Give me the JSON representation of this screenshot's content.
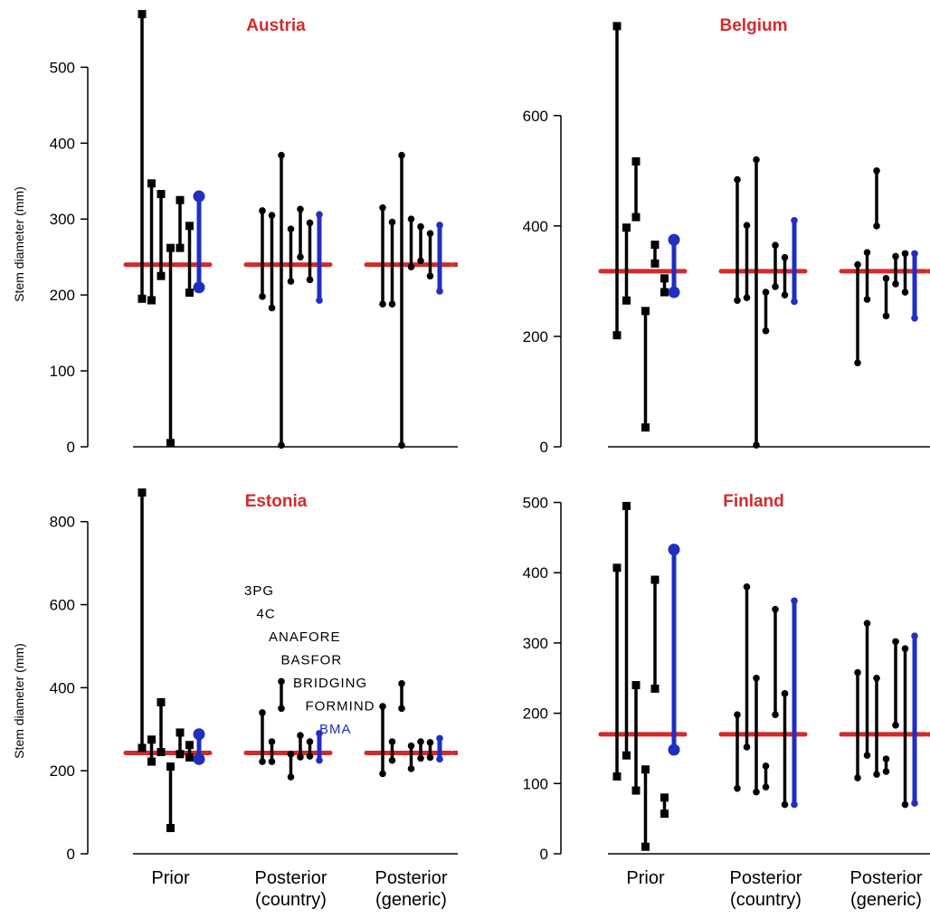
{
  "chart_data": [
    {
      "type": "scatter",
      "title": "Austria",
      "ylabel": "Stem diameter (mm)",
      "ylim": [
        0,
        560
      ],
      "yticks": [
        0,
        100,
        200,
        300,
        400,
        500
      ],
      "categories": [],
      "observed": 240,
      "groups": [
        {
          "name": "Prior",
          "intervals": [
            {
              "low": 195,
              "high": 570,
              "color": "black",
              "marker": "square"
            },
            {
              "low": 193,
              "high": 347,
              "color": "black",
              "marker": "square"
            },
            {
              "low": 225,
              "high": 333,
              "color": "black",
              "marker": "square"
            },
            {
              "low": 5,
              "high": 262,
              "color": "black",
              "marker": "square"
            },
            {
              "low": 262,
              "high": 325,
              "color": "black",
              "marker": "square"
            },
            {
              "low": 203,
              "high": 291,
              "color": "black",
              "marker": "square"
            },
            {
              "low": 210,
              "high": 330,
              "color": "blue",
              "marker": "big"
            }
          ]
        },
        {
          "name": "Posterior (country)",
          "intervals": [
            {
              "low": 198,
              "high": 311,
              "color": "black",
              "marker": "dot"
            },
            {
              "low": 183,
              "high": 305,
              "color": "black",
              "marker": "dot"
            },
            {
              "low": 2,
              "high": 384,
              "color": "black",
              "marker": "dot"
            },
            {
              "low": 218,
              "high": 287,
              "color": "black",
              "marker": "dot"
            },
            {
              "low": 250,
              "high": 313,
              "color": "black",
              "marker": "dot"
            },
            {
              "low": 220,
              "high": 295,
              "color": "black",
              "marker": "dot"
            },
            {
              "low": 193,
              "high": 306,
              "color": "blue",
              "marker": "dot"
            }
          ]
        },
        {
          "name": "Posterior (generic)",
          "intervals": [
            {
              "low": 188,
              "high": 315,
              "color": "black",
              "marker": "dot"
            },
            {
              "low": 188,
              "high": 296,
              "color": "black",
              "marker": "dot"
            },
            {
              "low": 2,
              "high": 384,
              "color": "black",
              "marker": "dot"
            },
            {
              "low": 237,
              "high": 300,
              "color": "black",
              "marker": "dot"
            },
            {
              "low": 245,
              "high": 290,
              "color": "black",
              "marker": "dot"
            },
            {
              "low": 225,
              "high": 281,
              "color": "black",
              "marker": "dot"
            },
            {
              "low": 205,
              "high": 292,
              "color": "blue",
              "marker": "dot"
            }
          ]
        }
      ]
    },
    {
      "type": "scatter",
      "title": "Belgium",
      "ylabel": "",
      "ylim": [
        0,
        770
      ],
      "yticks": [
        0,
        200,
        400,
        600
      ],
      "categories": [],
      "observed": 318,
      "groups": [
        {
          "name": "Prior",
          "intervals": [
            {
              "low": 202,
              "high": 762,
              "color": "black",
              "marker": "square"
            },
            {
              "low": 265,
              "high": 397,
              "color": "black",
              "marker": "square"
            },
            {
              "low": 416,
              "high": 517,
              "color": "black",
              "marker": "square"
            },
            {
              "low": 35,
              "high": 246,
              "color": "black",
              "marker": "square"
            },
            {
              "low": 332,
              "high": 366,
              "color": "black",
              "marker": "square"
            },
            {
              "low": 280,
              "high": 305,
              "color": "black",
              "marker": "square"
            },
            {
              "low": 280,
              "high": 375,
              "color": "blue",
              "marker": "big"
            }
          ]
        },
        {
          "name": "Posterior (country)",
          "intervals": [
            {
              "low": 265,
              "high": 484,
              "color": "black",
              "marker": "dot"
            },
            {
              "low": 270,
              "high": 401,
              "color": "black",
              "marker": "dot"
            },
            {
              "low": 3,
              "high": 520,
              "color": "black",
              "marker": "dot"
            },
            {
              "low": 210,
              "high": 280,
              "color": "black",
              "marker": "dot"
            },
            {
              "low": 290,
              "high": 365,
              "color": "black",
              "marker": "dot"
            },
            {
              "low": 275,
              "high": 343,
              "color": "black",
              "marker": "dot"
            },
            {
              "low": 263,
              "high": 410,
              "color": "blue",
              "marker": "dot"
            }
          ]
        },
        {
          "name": "Posterior (generic)",
          "intervals": [
            {
              "low": 152,
              "high": 330,
              "color": "black",
              "marker": "dot"
            },
            {
              "low": 267,
              "high": 352,
              "color": "black",
              "marker": "dot"
            },
            {
              "low": 400,
              "high": 500,
              "color": "black",
              "marker": "dot"
            },
            {
              "low": 237,
              "high": 305,
              "color": "black",
              "marker": "dot"
            },
            {
              "low": 295,
              "high": 345,
              "color": "black",
              "marker": "dot"
            },
            {
              "low": 280,
              "high": 350,
              "color": "black",
              "marker": "dot"
            },
            {
              "low": 233,
              "high": 350,
              "color": "blue",
              "marker": "dot"
            }
          ]
        }
      ]
    },
    {
      "type": "scatter",
      "title": "Estonia",
      "ylabel": "Stem diameter (mm)",
      "ylim": [
        0,
        880
      ],
      "yticks": [
        0,
        200,
        400,
        600,
        800
      ],
      "categories": [
        "Prior",
        "Posterior (country)",
        "Posterior (generic)"
      ],
      "observed": 243,
      "legend": {
        "models": [
          "3PG",
          "4C",
          "ANAFORE",
          "BASFOR",
          "BRIDGING",
          "FORMIND"
        ],
        "bma": "BMA"
      },
      "groups": [
        {
          "name": "Prior",
          "intervals": [
            {
              "low": 255,
              "high": 870,
              "color": "black",
              "marker": "square"
            },
            {
              "low": 222,
              "high": 275,
              "color": "black",
              "marker": "square"
            },
            {
              "low": 245,
              "high": 365,
              "color": "black",
              "marker": "square"
            },
            {
              "low": 62,
              "high": 210,
              "color": "black",
              "marker": "square"
            },
            {
              "low": 240,
              "high": 292,
              "color": "black",
              "marker": "square"
            },
            {
              "low": 232,
              "high": 262,
              "color": "black",
              "marker": "square"
            },
            {
              "low": 228,
              "high": 288,
              "color": "blue",
              "marker": "big"
            }
          ]
        },
        {
          "name": "Posterior (country)",
          "intervals": [
            {
              "low": 222,
              "high": 340,
              "color": "black",
              "marker": "dot"
            },
            {
              "low": 222,
              "high": 270,
              "color": "black",
              "marker": "dot"
            },
            {
              "low": 350,
              "high": 415,
              "color": "black",
              "marker": "dot"
            },
            {
              "low": 185,
              "high": 240,
              "color": "black",
              "marker": "dot"
            },
            {
              "low": 233,
              "high": 285,
              "color": "black",
              "marker": "dot"
            },
            {
              "low": 235,
              "high": 270,
              "color": "black",
              "marker": "dot"
            },
            {
              "low": 225,
              "high": 290,
              "color": "blue",
              "marker": "dot"
            }
          ]
        },
        {
          "name": "Posterior (generic)",
          "intervals": [
            {
              "low": 193,
              "high": 355,
              "color": "black",
              "marker": "dot"
            },
            {
              "low": 225,
              "high": 270,
              "color": "black",
              "marker": "dot"
            },
            {
              "low": 350,
              "high": 410,
              "color": "black",
              "marker": "dot"
            },
            {
              "low": 205,
              "high": 260,
              "color": "black",
              "marker": "dot"
            },
            {
              "low": 230,
              "high": 270,
              "color": "black",
              "marker": "dot"
            },
            {
              "low": 232,
              "high": 268,
              "color": "black",
              "marker": "dot"
            },
            {
              "low": 228,
              "high": 278,
              "color": "blue",
              "marker": "dot"
            }
          ]
        }
      ]
    },
    {
      "type": "scatter",
      "title": "Finland",
      "ylabel": "",
      "ylim": [
        0,
        520
      ],
      "yticks": [
        0,
        100,
        200,
        300,
        400,
        500
      ],
      "categories": [
        "Prior",
        "Posterior (country)",
        "Posterior (generic)"
      ],
      "observed": 170,
      "groups": [
        {
          "name": "Prior",
          "intervals": [
            {
              "low": 110,
              "high": 407,
              "color": "black",
              "marker": "square"
            },
            {
              "low": 140,
              "high": 495,
              "color": "black",
              "marker": "square"
            },
            {
              "low": 90,
              "high": 240,
              "color": "black",
              "marker": "square"
            },
            {
              "low": 10,
              "high": 120,
              "color": "black",
              "marker": "square"
            },
            {
              "low": 235,
              "high": 390,
              "color": "black",
              "marker": "square"
            },
            {
              "low": 57,
              "high": 80,
              "color": "black",
              "marker": "square"
            },
            {
              "low": 148,
              "high": 433,
              "color": "blue",
              "marker": "big"
            }
          ]
        },
        {
          "name": "Posterior (country)",
          "intervals": [
            {
              "low": 93,
              "high": 198,
              "color": "black",
              "marker": "dot"
            },
            {
              "low": 152,
              "high": 380,
              "color": "black",
              "marker": "dot"
            },
            {
              "low": 88,
              "high": 250,
              "color": "black",
              "marker": "dot"
            },
            {
              "low": 95,
              "high": 125,
              "color": "black",
              "marker": "dot"
            },
            {
              "low": 198,
              "high": 348,
              "color": "black",
              "marker": "dot"
            },
            {
              "low": 70,
              "high": 228,
              "color": "black",
              "marker": "dot"
            },
            {
              "low": 70,
              "high": 360,
              "color": "blue",
              "marker": "dot"
            }
          ]
        },
        {
          "name": "Posterior (generic)",
          "intervals": [
            {
              "low": 108,
              "high": 258,
              "color": "black",
              "marker": "dot"
            },
            {
              "low": 140,
              "high": 328,
              "color": "black",
              "marker": "dot"
            },
            {
              "low": 113,
              "high": 250,
              "color": "black",
              "marker": "dot"
            },
            {
              "low": 117,
              "high": 135,
              "color": "black",
              "marker": "dot"
            },
            {
              "low": 183,
              "high": 302,
              "color": "black",
              "marker": "dot"
            },
            {
              "low": 70,
              "high": 292,
              "color": "black",
              "marker": "dot"
            },
            {
              "low": 72,
              "high": 310,
              "color": "blue",
              "marker": "dot"
            }
          ]
        }
      ]
    }
  ],
  "colors": {
    "observed": "#d42a2a",
    "model": "#000000",
    "bma": "#1f2fbf",
    "title": "#d42a2a"
  },
  "category_labels": [
    {
      "line1": "Prior",
      "line2": ""
    },
    {
      "line1": "Posterior",
      "line2": "(country)"
    },
    {
      "line1": "Posterior",
      "line2": "(generic)"
    }
  ]
}
